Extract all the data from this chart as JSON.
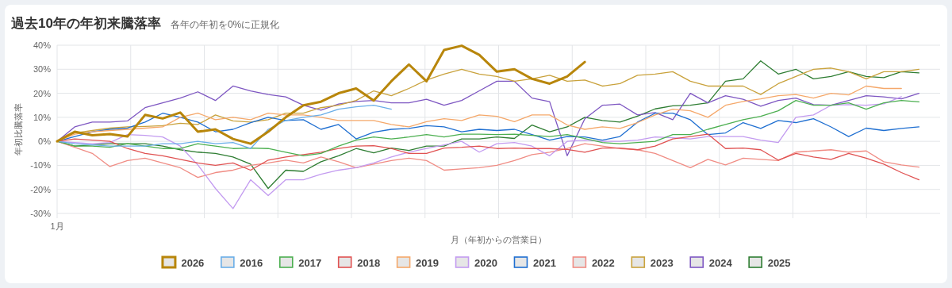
{
  "chart_data": {
    "type": "line",
    "title": "過去10年の年初来騰落率",
    "subtitle": "各年の年初を0%に正規化",
    "xlabel": "月（年初からの営業日）",
    "ylabel": "年初比騰落率",
    "categories": [
      "1月",
      null,
      null,
      null,
      null,
      null,
      null,
      null,
      null,
      null,
      null,
      null,
      null,
      null,
      null,
      null,
      null,
      null,
      null,
      null,
      null,
      null,
      null,
      null,
      null,
      null,
      null,
      null,
      null,
      null,
      null,
      null,
      null,
      null,
      null,
      null,
      null,
      null,
      null,
      null,
      null,
      null,
      null,
      null,
      null,
      null,
      null,
      null,
      null,
      null
    ],
    "ylim": [
      -30,
      40
    ],
    "yticks": [
      {
        "value": -30,
        "label": "-30%"
      },
      {
        "value": -20,
        "label": "-20%"
      },
      {
        "value": -10,
        "label": "-10%"
      },
      {
        "value": 0,
        "label": "0%"
      },
      {
        "value": 10,
        "label": "10%"
      },
      {
        "value": 20,
        "label": "20%"
      },
      {
        "value": 30,
        "label": "30%"
      },
      {
        "value": 40,
        "label": "40%"
      }
    ],
    "grid": true,
    "legend": "bottom",
    "marker": "none",
    "line_style": "solid",
    "series": [
      {
        "name": "2026",
        "color": "#b8860b",
        "values": [
          0,
          4,
          2.5,
          3,
          2,
          11,
          9.5,
          12,
          4,
          5,
          1,
          -1,
          4,
          10,
          15,
          16.5,
          20,
          22,
          17,
          25,
          32,
          25,
          38,
          39.8,
          36,
          29,
          30,
          26,
          24,
          27,
          33,
          null,
          null,
          null,
          null,
          null,
          null,
          null,
          null,
          null,
          null,
          null,
          null,
          null,
          null,
          null,
          null,
          null,
          null,
          null
        ]
      },
      {
        "name": "2016",
        "color": "#6aaee8",
        "values": [
          0,
          -1,
          -1.5,
          -2,
          -2,
          -2,
          -1,
          -1,
          0,
          -1,
          -0.5,
          -3,
          5,
          8.7,
          10,
          11,
          13.4,
          14.4,
          15,
          13.4,
          null,
          null,
          null,
          null,
          null,
          null,
          null,
          null,
          null,
          null,
          null,
          null,
          null,
          null,
          null,
          null,
          null,
          null,
          null,
          null,
          null,
          null,
          null,
          null,
          null,
          null,
          null,
          null,
          null,
          null
        ]
      },
      {
        "name": "2017",
        "color": "#4caf50",
        "values": [
          0,
          -2,
          -2,
          -2.5,
          -1,
          -2,
          -3,
          -3,
          -1,
          -2,
          -3,
          -2.8,
          -3,
          -4.5,
          -6,
          -5,
          -2,
          0.5,
          1.8,
          1,
          1.8,
          2.8,
          1.8,
          3,
          3,
          2.8,
          3,
          2.5,
          2,
          2.8,
          1.2,
          -0.5,
          -1,
          -0.5,
          0,
          2.8,
          2.8,
          5,
          7,
          9,
          10.4,
          12.7,
          17,
          15,
          15,
          16,
          13.4,
          16,
          17,
          16.4
        ]
      },
      {
        "name": "2018",
        "color": "#e05252",
        "values": [
          0,
          1,
          0.5,
          0,
          -3,
          -5,
          -6,
          -7.5,
          -9,
          -10,
          -9,
          -12,
          -7.8,
          -6.5,
          -5.5,
          -4.5,
          -3,
          -2,
          -1.8,
          -3,
          -5,
          -5,
          -2.8,
          -2.5,
          -2,
          -3,
          -2.8,
          -3,
          -3,
          -3.4,
          -4.5,
          -2.8,
          -2.8,
          -3.5,
          -2,
          1,
          2,
          3,
          -3,
          -2.8,
          -3.5,
          -7.8,
          -5,
          -6.5,
          -7.5,
          -5,
          -7,
          -9.5,
          -13,
          -16
        ]
      },
      {
        "name": "2019",
        "color": "#f5a86a",
        "values": [
          0,
          3,
          4,
          4.5,
          5,
          5.5,
          6,
          10,
          11.7,
          9,
          10,
          9,
          11.7,
          11,
          11,
          10,
          8.7,
          8.7,
          8.7,
          7,
          6,
          8.2,
          9.4,
          8.7,
          11,
          10.4,
          8.2,
          11,
          11,
          6.8,
          5,
          6,
          5.4,
          7.8,
          11,
          13.4,
          12.7,
          10,
          15,
          16.6,
          17.7,
          19,
          19.5,
          18,
          20,
          19.3,
          23,
          22,
          22,
          null
        ]
      },
      {
        "name": "2020",
        "color": "#c39bf0",
        "values": [
          0,
          -0.5,
          -1,
          -0.5,
          2.8,
          2.5,
          1.8,
          -2,
          -9.8,
          -19.6,
          -28,
          -16,
          -22.6,
          -16,
          -16,
          -13.7,
          -12,
          -11,
          -9,
          -6.5,
          -4.5,
          -3,
          -1.5,
          0,
          -4.5,
          -1,
          -0.5,
          -2,
          -6,
          0,
          0.5,
          0,
          0,
          0.5,
          1.8,
          1.5,
          1,
          2,
          2,
          2,
          0.5,
          -0.5,
          10,
          11,
          15,
          15.3,
          15,
          15.6,
          18.6,
          null
        ]
      },
      {
        "name": "2021",
        "color": "#1f6fd1",
        "values": [
          0,
          2,
          4,
          5,
          5.5,
          8,
          11.7,
          10,
          8,
          4,
          5,
          7.8,
          10,
          8.7,
          9,
          5,
          7,
          1,
          3.8,
          5,
          5.4,
          6.5,
          6,
          4,
          5,
          4.5,
          5,
          2.8,
          0.5,
          2,
          1.8,
          0.5,
          2,
          8,
          11.7,
          11.7,
          9,
          2.8,
          3.5,
          7.8,
          5.4,
          8.7,
          7.8,
          9.4,
          6,
          2,
          5.5,
          4.5,
          5.4,
          6
        ]
      },
      {
        "name": "2022",
        "color": "#f08c84",
        "values": [
          0,
          -2.5,
          -5,
          -10.5,
          -8,
          -7,
          -9,
          -11,
          -15,
          -13,
          -12,
          -10,
          -9,
          -7.8,
          -9,
          -6.5,
          -8.5,
          -11,
          -9.5,
          -8,
          -7,
          -8,
          -12,
          -11.5,
          -11,
          -10,
          -8,
          -5.5,
          -4.5,
          -3,
          -1,
          -2,
          -3,
          -3.5,
          -5,
          -8,
          -11,
          -7.5,
          -9.8,
          -7,
          -7.5,
          -8,
          -4.5,
          -4,
          -3.5,
          -4.5,
          -4,
          -8.5,
          -9.8,
          -10.7
        ]
      },
      {
        "name": "2023",
        "color": "#c9a23c",
        "values": [
          0,
          3.5,
          4.5,
          5.5,
          6,
          6.2,
          6.5,
          7.5,
          7,
          11,
          8.5,
          8,
          9,
          11.7,
          11.7,
          14,
          15,
          17,
          21,
          19,
          22,
          25.5,
          28,
          30,
          28,
          27,
          25,
          26,
          27.5,
          25,
          25.5,
          23,
          24,
          27.5,
          28,
          29,
          25,
          23,
          23,
          23,
          19.5,
          24,
          27,
          30,
          30.5,
          29,
          26,
          29,
          29,
          30
        ]
      },
      {
        "name": "2024",
        "color": "#7e57c2",
        "values": [
          0,
          6,
          8,
          8,
          8.5,
          14,
          16,
          18,
          20.6,
          17,
          23,
          21,
          19.5,
          18.5,
          15,
          13,
          15.5,
          16.6,
          17,
          16,
          16,
          17.5,
          15,
          17,
          21,
          25,
          25,
          18,
          16.5,
          -6,
          9.4,
          15,
          15.5,
          11,
          12,
          9,
          20,
          16,
          19,
          17.5,
          14.6,
          17,
          18,
          15.3,
          15,
          17,
          19,
          18.5,
          17.7,
          20
        ]
      },
      {
        "name": "2025",
        "color": "#2e7d32",
        "values": [
          0,
          -2,
          -1.5,
          -1,
          -1,
          -1,
          -2,
          -3.5,
          -4.5,
          -5,
          -6.5,
          -9.5,
          -19.6,
          -12,
          -12.5,
          -8.5,
          -6,
          -3,
          -4.8,
          -2.8,
          -3.8,
          -2,
          -2,
          1,
          1,
          1.8,
          1.2,
          6.8,
          4,
          6,
          10,
          8.7,
          8,
          10.5,
          13.5,
          14.8,
          15,
          16,
          25,
          26,
          33.5,
          28,
          30,
          26,
          27,
          29,
          27,
          26.5,
          29,
          28.5
        ]
      }
    ]
  }
}
